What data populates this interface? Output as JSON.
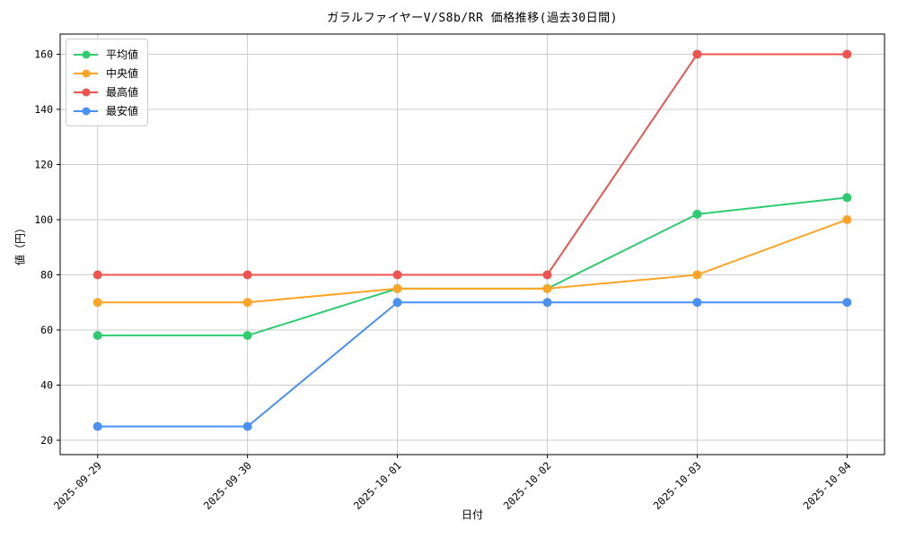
{
  "chart_data": {
    "type": "line",
    "title": "ガラルファイヤーV/S8b/RR 価格推移(過去30日間)",
    "xlabel": "日付",
    "ylabel": "値（円）",
    "categories": [
      "2025-09-29",
      "2025-09-30",
      "2025-10-01",
      "2025-10-02",
      "2025-10-03",
      "2025-10-04"
    ],
    "series": [
      {
        "name": "平均値",
        "key": "average",
        "color": "#2ecc71",
        "values": [
          58,
          58,
          75,
          75,
          102,
          108
        ]
      },
      {
        "name": "中央値",
        "key": "median",
        "color": "#ffa424",
        "values": [
          70,
          70,
          75,
          75,
          80,
          100
        ]
      },
      {
        "name": "最高値",
        "key": "max",
        "color": "#ef5350",
        "values": [
          80,
          80,
          80,
          80,
          160,
          160
        ]
      },
      {
        "name": "最安値",
        "key": "min",
        "color": "#4a90f4",
        "values": [
          25,
          25,
          70,
          70,
          70,
          70
        ]
      }
    ],
    "yticks": [
      20,
      40,
      60,
      80,
      100,
      120,
      140,
      160
    ],
    "ylim": [
      14.8,
      167.3
    ],
    "xlim_index": [
      -0.25,
      5.25
    ],
    "grid": true,
    "grid_color": "#cccccc",
    "spine_color": "#000000",
    "background": "#ffffff",
    "legend_position": "upper left",
    "marker": "circle",
    "marker_radius": 5,
    "line_width": 2
  }
}
